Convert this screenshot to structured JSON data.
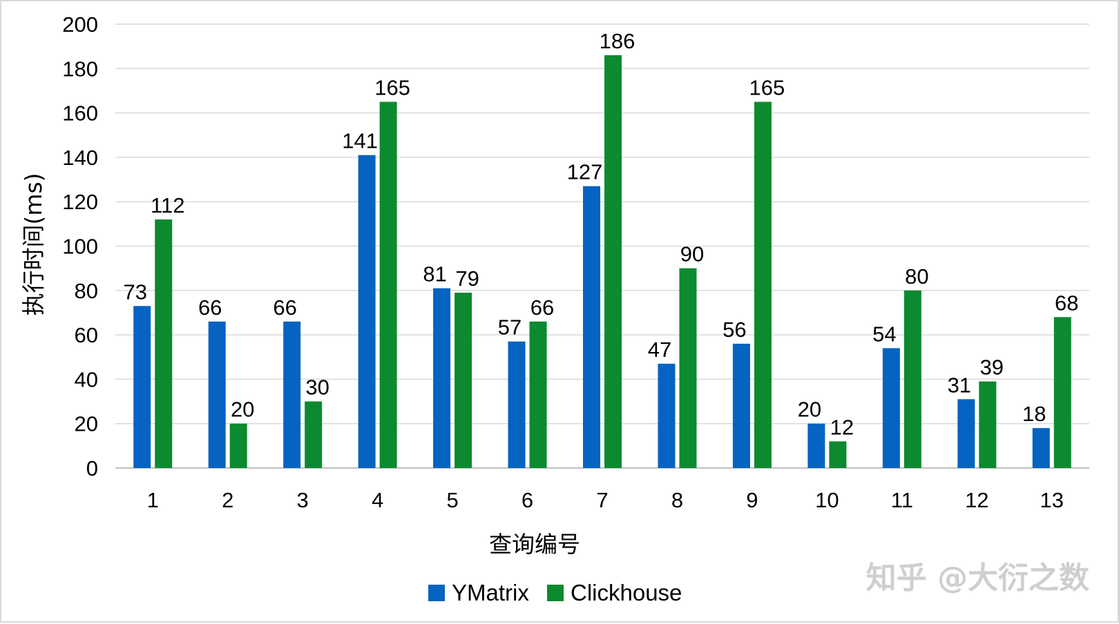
{
  "chart_data": {
    "type": "bar",
    "title": "",
    "xlabel": "查询编号",
    "ylabel": "执行时间(ms)",
    "ylim": [
      0,
      200
    ],
    "yticks": [
      0,
      20,
      40,
      60,
      80,
      100,
      120,
      140,
      160,
      180,
      200
    ],
    "grid": true,
    "legend_position": "bottom",
    "categories": [
      "1",
      "2",
      "3",
      "4",
      "5",
      "6",
      "7",
      "8",
      "9",
      "10",
      "11",
      "12",
      "13"
    ],
    "series": [
      {
        "name": "YMatrix",
        "color": "#0563c1",
        "values": [
          73,
          66,
          66,
          141,
          81,
          57,
          127,
          47,
          56,
          20,
          54,
          31,
          18
        ]
      },
      {
        "name": "Clickhouse",
        "color": "#0b8a2f",
        "values": [
          112,
          20,
          30,
          165,
          79,
          66,
          186,
          90,
          165,
          12,
          80,
          39,
          68
        ]
      }
    ]
  },
  "watermark": "知乎 @大衍之数"
}
